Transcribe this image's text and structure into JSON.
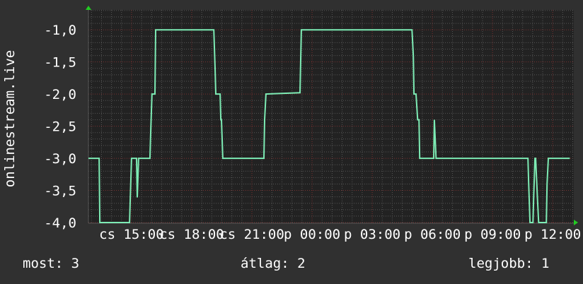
{
  "chart_data": {
    "type": "line",
    "title": "",
    "ylabel": "onlinestream.live",
    "xlabel": "",
    "ylim": [
      -4.0,
      -0.69
    ],
    "xlim": [
      "cs 12:51",
      "p 13:01"
    ],
    "yticks": [
      "-1,0",
      "-1,5",
      "-2,0",
      "-2,5",
      "-3,0",
      "-3,5",
      "-4,0"
    ],
    "ytick_values": [
      -1.0,
      -1.5,
      -2.0,
      -2.5,
      -3.0,
      -3.5,
      -4.0
    ],
    "xticks": [
      "cs 15:00",
      "cs 18:00",
      "cs 21:00",
      "p 00:00",
      "p 03:00",
      "p 06:00",
      "p 09:00",
      "p 12:00"
    ],
    "grid": true,
    "colors": {
      "background": "#303030",
      "plot": "#222222",
      "line": "#7debb4",
      "minor_grid": "#555555",
      "major_grid": "#7a3030",
      "arrow": "#22cc22"
    },
    "series": [
      {
        "points": [
          [
            "cs 12:51",
            -3
          ],
          [
            "cs 13:23",
            -3
          ],
          [
            "cs 13:25",
            -4
          ],
          [
            "cs 14:54",
            -4
          ],
          [
            "cs 14:56",
            -3.63
          ],
          [
            "cs 15:00",
            -3
          ],
          [
            "cs 15:15",
            -3
          ],
          [
            "cs 15:17",
            -3.61
          ],
          [
            "cs 15:21",
            -3
          ],
          [
            "cs 15:55",
            -3
          ],
          [
            "cs 15:57",
            -2.63
          ],
          [
            "cs 16:01",
            -2
          ],
          [
            "cs 16:10",
            -2
          ],
          [
            "cs 16:12",
            -1
          ],
          [
            "cs 19:06",
            -1
          ],
          [
            "cs 19:10",
            -1.6
          ],
          [
            "cs 19:12",
            -2
          ],
          [
            "cs 19:25",
            -2
          ],
          [
            "cs 19:27",
            -2.4
          ],
          [
            "cs 19:29",
            -2.4
          ],
          [
            "cs 19:33",
            -3
          ],
          [
            "cs 21:36",
            -3
          ],
          [
            "cs 21:38",
            -2.4
          ],
          [
            "cs 21:42",
            -2
          ],
          [
            "cs 23:24",
            -1.98
          ],
          [
            "cs 23:28",
            -1
          ],
          [
            "p 04:59",
            -1
          ],
          [
            "p 05:03",
            -1.41
          ],
          [
            "p 05:05",
            -2
          ],
          [
            "p 05:11",
            -2
          ],
          [
            "p 05:16",
            -2.4
          ],
          [
            "p 05:20",
            -2.4
          ],
          [
            "p 05:22",
            -3
          ],
          [
            "p 06:04",
            -3
          ],
          [
            "p 06:06",
            -2.4
          ],
          [
            "p 06:11",
            -3
          ],
          [
            "p 10:46",
            -3
          ],
          [
            "p 10:48",
            -3.39
          ],
          [
            "p 10:52",
            -4
          ],
          [
            "p 11:01",
            -4
          ],
          [
            "p 11:03",
            -3.6
          ],
          [
            "p 11:07",
            -3
          ],
          [
            "p 11:09",
            -3
          ],
          [
            "p 11:14",
            -3.6
          ],
          [
            "p 11:18",
            -4
          ],
          [
            "p 11:41",
            -4
          ],
          [
            "p 11:43",
            -3.4
          ],
          [
            "p 11:47",
            -3
          ],
          [
            "p 12:51",
            -3
          ]
        ]
      }
    ]
  },
  "legend": {
    "current": "most: 3",
    "average": "átlag: 2",
    "best": "legjobb: 1"
  }
}
